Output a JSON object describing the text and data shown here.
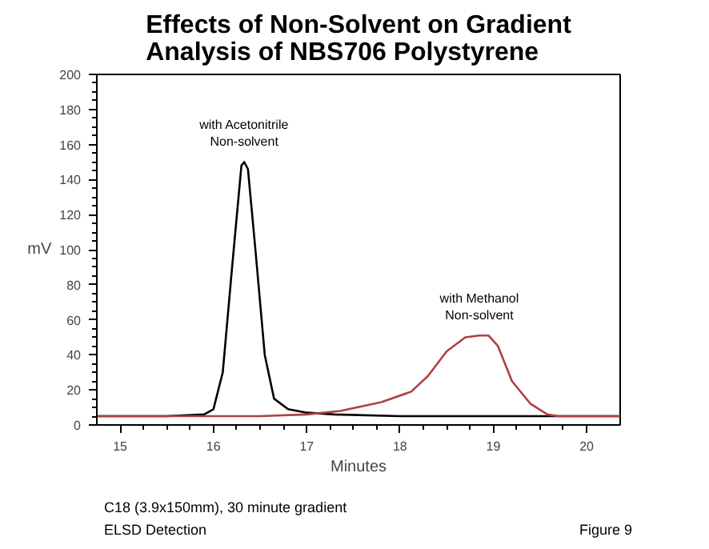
{
  "chart_data": {
    "type": "line",
    "title": "Effects of Non-Solvent on Gradient\nAnalysis of NBS706 Polystyrene",
    "xlabel": "Minutes",
    "ylabel": "mV",
    "xlim": [
      14.75,
      20.36
    ],
    "ylim": [
      0,
      200
    ],
    "xticks": [
      15,
      16,
      17,
      18,
      19,
      20
    ],
    "yticks": [
      0,
      20,
      40,
      60,
      80,
      100,
      120,
      140,
      160,
      180,
      200
    ],
    "grid": false,
    "marker": "none",
    "line_style": "solid",
    "series": [
      {
        "name": "with Acetonitrile\nNon-solvent",
        "color": "#000000",
        "x": [
          14.75,
          15.5,
          15.9,
          16.0,
          16.1,
          16.2,
          16.3,
          16.33,
          16.37,
          16.45,
          16.55,
          16.65,
          16.8,
          17.0,
          17.3,
          18.0,
          20.36
        ],
        "values": [
          5,
          5,
          6,
          9,
          30,
          90,
          148,
          150,
          146,
          100,
          40,
          15,
          9,
          7,
          6,
          5,
          5
        ]
      },
      {
        "name": "with Methanol\nNon-solvent",
        "color": "#b04040",
        "x": [
          14.75,
          16.5,
          17.0,
          17.36,
          17.8,
          18.12,
          18.3,
          18.5,
          18.7,
          18.85,
          18.95,
          19.05,
          19.2,
          19.4,
          19.58,
          19.7,
          20.36
        ],
        "values": [
          5,
          5,
          6,
          8,
          13,
          19,
          28,
          42,
          50,
          51,
          51,
          45,
          25,
          12,
          6,
          5,
          5
        ]
      }
    ],
    "annotations": [
      "C18 (3.9x150mm), 30 minute gradient",
      "ELSD Detection",
      "Figure 9"
    ]
  }
}
